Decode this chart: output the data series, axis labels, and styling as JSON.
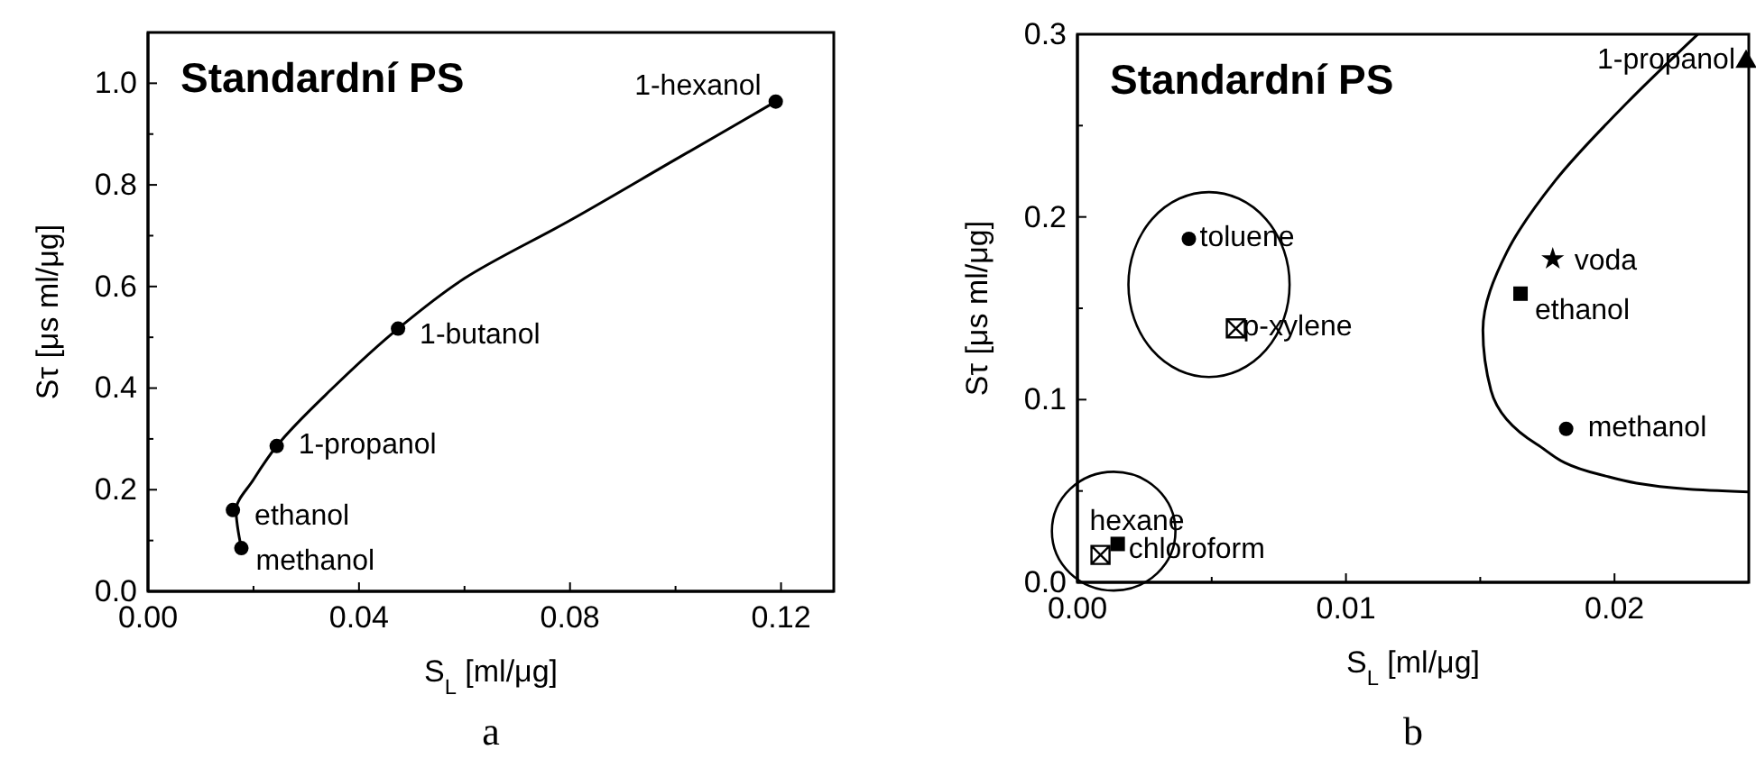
{
  "chart_data": [
    {
      "type": "scatter",
      "title": "Standardní PS",
      "xlabel": "S$_{L}$ [ml/μg]",
      "ylabel": "Sτ [μs ml/μg]",
      "xlim": [
        0,
        0.13
      ],
      "ylim": [
        0,
        1.1
      ],
      "xticks": [
        {
          "value": 0,
          "label": "0.00"
        },
        {
          "value": 0.02,
          "label": null
        },
        {
          "value": 0.04,
          "label": "0.04"
        },
        {
          "value": 0.06,
          "label": null
        },
        {
          "value": 0.08,
          "label": "0.08"
        },
        {
          "value": 0.1,
          "label": null
        },
        {
          "value": 0.12,
          "label": "0.12"
        }
      ],
      "yticks": [
        {
          "value": 0,
          "label": "0.0"
        },
        {
          "value": 0.1,
          "label": null
        },
        {
          "value": 0.2,
          "label": "0.2"
        },
        {
          "value": 0.3,
          "label": null
        },
        {
          "value": 0.4,
          "label": "0.4"
        },
        {
          "value": 0.5,
          "label": null
        },
        {
          "value": 0.6,
          "label": "0.6"
        },
        {
          "value": 0.7,
          "label": null
        },
        {
          "value": 0.8,
          "label": "0.8"
        },
        {
          "value": 0.9,
          "label": null
        },
        {
          "value": 1.0,
          "label": "1.0"
        }
      ],
      "series": [
        {
          "marker": "circle",
          "color": "#000000",
          "x": [
            0.0177,
            0.0161,
            0.0244,
            0.0474,
            0.119
          ],
          "values": [
            0.085,
            0.16,
            0.286,
            0.517,
            0.964
          ]
        },
        {
          "type": "line",
          "marker": "none",
          "color": "#000000",
          "x": [
            0.0177,
            0.0167,
            0.02,
            0.0244,
            0.035,
            0.0474,
            0.06,
            0.08,
            0.1,
            0.119
          ],
          "values": [
            0.085,
            0.16,
            0.22,
            0.286,
            0.4,
            0.517,
            0.616,
            0.73,
            0.85,
            0.964
          ]
        }
      ],
      "annotations": [
        {
          "text": "methanol",
          "x": 0.0177,
          "y": 0.085
        },
        {
          "text": "ethanol",
          "x": 0.0161,
          "y": 0.16
        },
        {
          "text": "1-propanol",
          "x": 0.0244,
          "y": 0.286
        },
        {
          "text": "1-butanol",
          "x": 0.0474,
          "y": 0.517
        },
        {
          "text": "1-hexanol",
          "x": 0.119,
          "y": 0.964
        },
        "a"
      ]
    },
    {
      "type": "scatter",
      "title": "Standardní PS",
      "xlabel": "S$_{L}$ [ml/μg]",
      "ylabel": "Sτ [μs ml/μg]",
      "xlim": [
        0,
        0.025
      ],
      "ylim": [
        0,
        0.3
      ],
      "xticks": [
        {
          "value": 0,
          "label": "0.00"
        },
        {
          "value": 0.005,
          "label": null
        },
        {
          "value": 0.01,
          "label": "0.01"
        },
        {
          "value": 0.015,
          "label": null
        },
        {
          "value": 0.02,
          "label": "0.02"
        },
        {
          "value": 0.025,
          "label": null
        }
      ],
      "yticks": [
        {
          "value": 0,
          "label": "0.0"
        },
        {
          "value": 0.05,
          "label": null
        },
        {
          "value": 0.1,
          "label": "0.1"
        },
        {
          "value": 0.15,
          "label": null
        },
        {
          "value": 0.2,
          "label": "0.2"
        },
        {
          "value": 0.25,
          "label": null
        },
        {
          "value": 0.3,
          "label": "0.3"
        }
      ],
      "series": [
        {
          "name": "toluene",
          "marker": "circle",
          "color": "#000000",
          "x": [
            0.00415
          ],
          "values": [
            0.188
          ]
        },
        {
          "name": "p-xylene",
          "marker": "cross",
          "color": "#000000",
          "x": [
            0.0059
          ],
          "values": [
            0.139
          ]
        },
        {
          "name": "hexane",
          "marker": "cross",
          "color": "#000000",
          "x": [
            0.00086
          ],
          "values": [
            0.015
          ]
        },
        {
          "name": "chloroform",
          "marker": "square",
          "color": "#000000",
          "x": [
            0.0015
          ],
          "values": [
            0.021
          ]
        },
        {
          "name": "voda",
          "marker": "star",
          "color": "#000000",
          "x": [
            0.0177
          ],
          "values": [
            0.177
          ]
        },
        {
          "name": "ethanol",
          "marker": "square",
          "color": "#000000",
          "x": [
            0.0165
          ],
          "values": [
            0.158
          ]
        },
        {
          "name": "methanol",
          "marker": "circle",
          "color": "#000000",
          "x": [
            0.0182
          ],
          "values": [
            0.084
          ]
        },
        {
          "name": "1-propanol",
          "marker": "triangle",
          "color": "#000000",
          "x": [
            0.0249
          ],
          "values": [
            0.285
          ]
        },
        {
          "type": "line",
          "marker": "none",
          "color": "#000000",
          "x": [
            0.0231,
            0.0205,
            0.0178,
            0.016,
            0.0151,
            0.0154,
            0.0171,
            0.0194,
            0.0228,
            0.025
          ],
          "values": [
            0.3,
            0.263,
            0.22,
            0.181,
            0.138,
            0.105,
            0.0756,
            0.0592,
            0.0509,
            0.0495
          ]
        }
      ],
      "annotations": [
        "b"
      ]
    }
  ]
}
